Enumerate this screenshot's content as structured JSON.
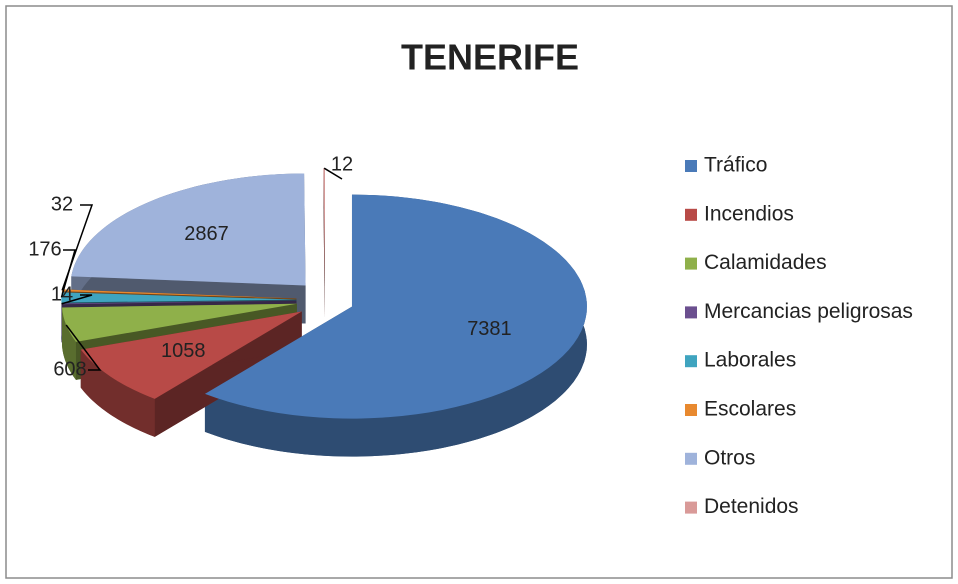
{
  "chart_data": {
    "type": "pie3d",
    "title": "TENERIFE",
    "categories": [
      "Tráfico",
      "Incendios",
      "Calamidades",
      "Mercancias peligrosas",
      "Laborales",
      "Escolares",
      "Otros",
      "Detenidos"
    ],
    "values": [
      7381,
      1058,
      608,
      14,
      176,
      32,
      2867,
      12
    ],
    "colors": [
      "#4a7ab8",
      "#b84a47",
      "#8fb04a",
      "#6b4f8f",
      "#3fa4bf",
      "#e8892f",
      "#9fb3db",
      "#d99a98"
    ],
    "legend": "right"
  }
}
